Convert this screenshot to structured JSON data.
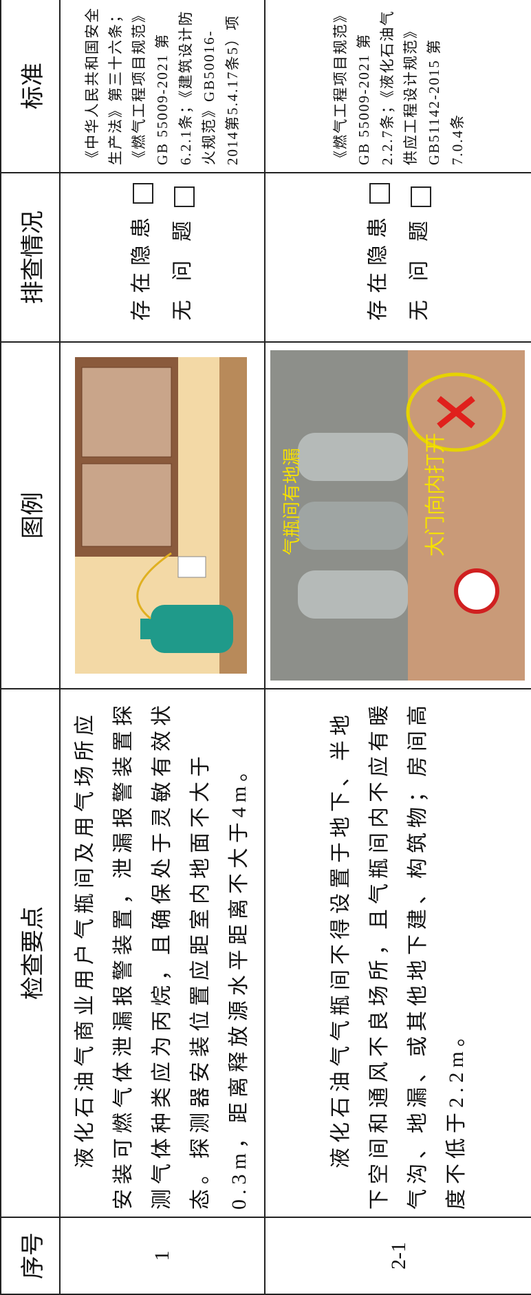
{
  "header": {
    "columns": [
      "序号",
      "检查要点",
      "图例",
      "排查情况",
      "标准"
    ]
  },
  "status_options": [
    "存在隐患",
    "无 问 题"
  ],
  "rows": [
    {
      "number": "1",
      "points": "液化石油气商业用户气瓶间及用气场所应安装可燃气体泄漏报警装置，泄漏报警装置探测气体种类应为丙烷，且确保处于灵敏有效状态。探测器安装位置应距室内地面不大于0.3m，距离释放源水平距离不大于4m。",
      "image_labels": [],
      "standard": "《中华人民共和国安全生产法》第三十六条；《燃气工程项目规范》GB 55009-2021 第6.2.1条；《建筑设计防火规范》GB50016-2014第5.4.17条5）项"
    },
    {
      "number": "2-1",
      "points": "液化石油气气瓶间不得设置于地下、半地下空间和通风不良场所，且气瓶间内不应有暖气沟、地漏、或其他地下建、构筑物；房间高度不低于2.2m。",
      "image_labels": [
        "气瓶间有地漏",
        "大门向内打开"
      ],
      "standard": "《燃气工程项目规范》GB 55009-2021 第2.2.7条；《液化石油气供应工程设计规范》GB51142-2015 第7.0.4条"
    }
  ]
}
